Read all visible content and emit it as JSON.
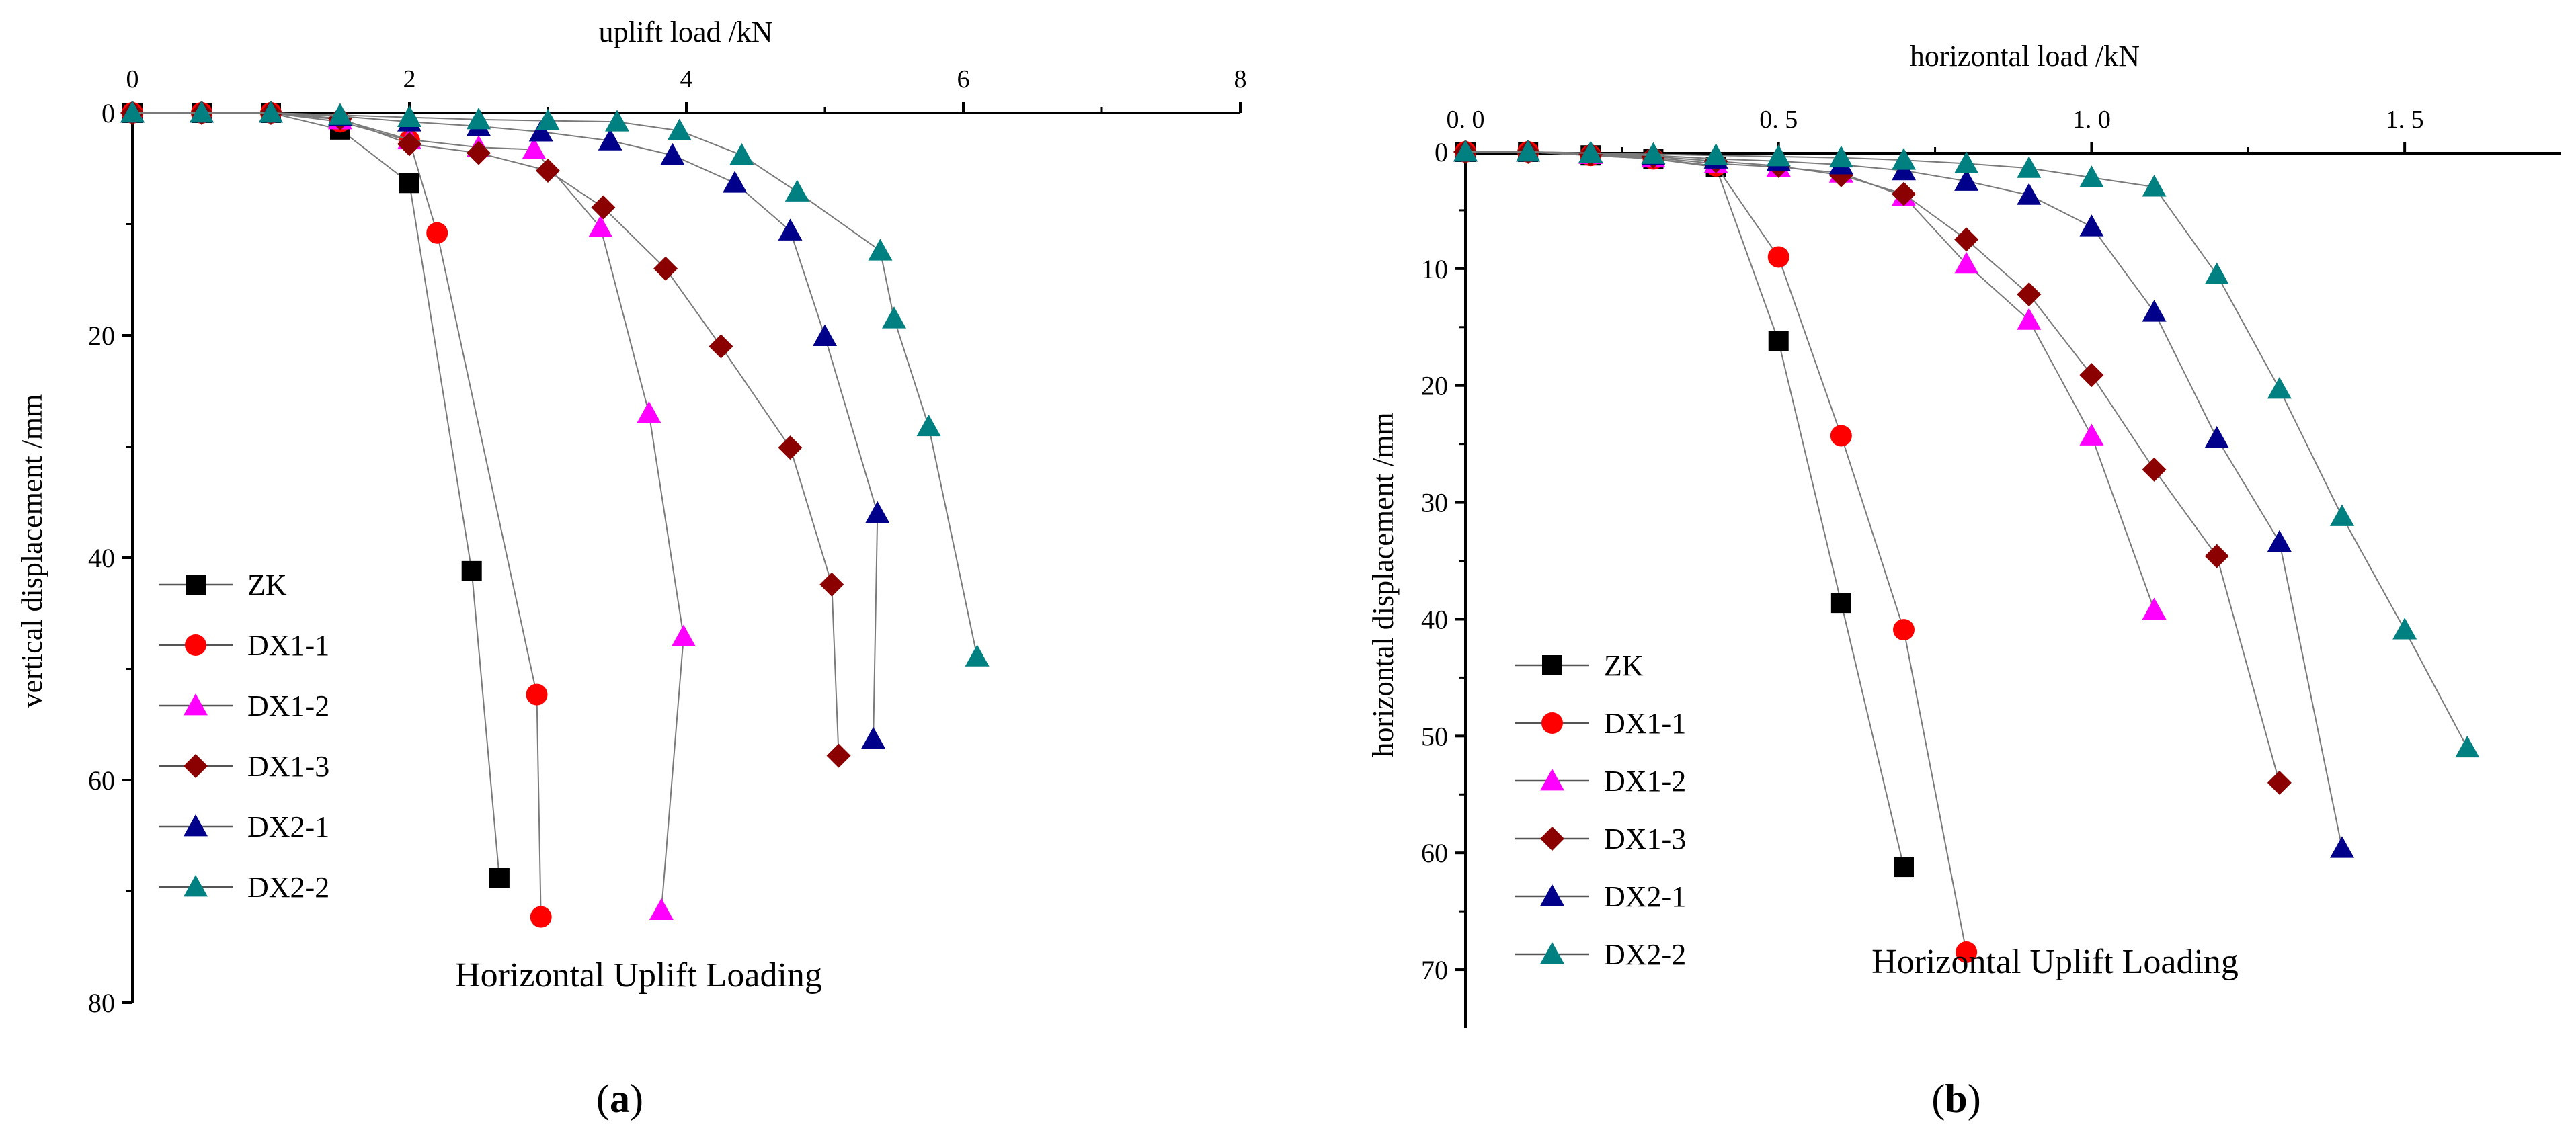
{
  "chart_data": [
    {
      "type": "line",
      "panel_label": "(a)",
      "panel_label_bold": "a",
      "xlabel": "uplift load /kN",
      "ylabel": "vertical displacement /mm",
      "annotation": "Horizontal Uplift Loading",
      "xlim": [
        0,
        8
      ],
      "ylim": [
        0,
        80
      ],
      "x_ticks": [
        0,
        2,
        4,
        6,
        8
      ],
      "x_tick_labels": [
        "0",
        "2",
        "4",
        "6",
        "8"
      ],
      "y_ticks": [
        0,
        20,
        40,
        60,
        80
      ],
      "y_tick_labels": [
        "0",
        "20",
        "40",
        "60",
        "80"
      ],
      "x_axis_position": "top",
      "y_inverted": true,
      "legend_position": "bottom-left",
      "series": [
        {
          "name": "ZK",
          "color": "#000000",
          "marker": "square",
          "x": [
            0,
            0.5,
            1,
            1.5,
            2,
            2.45,
            2.65
          ],
          "y": [
            0,
            0,
            0,
            1.5,
            6.3,
            41.2,
            68.8
          ]
        },
        {
          "name": "DX1-1",
          "color": "#ff0000",
          "marker": "circle",
          "x": [
            0,
            0.5,
            1,
            1.5,
            2,
            2.2,
            2.92,
            2.95
          ],
          "y": [
            0,
            0,
            0,
            0.8,
            2.5,
            10.8,
            52.3,
            72.3
          ]
        },
        {
          "name": "DX1-2",
          "color": "#ff00ff",
          "marker": "triangle-up",
          "x": [
            0,
            0.5,
            1,
            1.5,
            2,
            2.5,
            2.9,
            3.38,
            3.73,
            3.98,
            3.82
          ],
          "y": [
            0,
            0,
            0,
            0.6,
            2.4,
            3.1,
            3.3,
            10.3,
            27.0,
            47.1,
            71.7
          ]
        },
        {
          "name": "DX1-3",
          "color": "#8b0000",
          "marker": "diamond",
          "x": [
            0,
            0.5,
            1,
            1.5,
            2,
            2.5,
            3,
            3.4,
            3.85,
            4.25,
            4.75,
            5.05,
            5.1
          ],
          "y": [
            0,
            0,
            0,
            0.5,
            2.8,
            3.6,
            5.2,
            8.5,
            14.0,
            21.0,
            30.1,
            42.4,
            57.8
          ]
        },
        {
          "name": "DX2-1",
          "color": "#00008b",
          "marker": "triangle-up",
          "x": [
            0,
            0.5,
            1,
            1.5,
            2,
            2.5,
            2.95,
            3.45,
            3.9,
            4.35,
            4.75,
            5.0,
            5.38,
            5.35
          ],
          "y": [
            0,
            0,
            0,
            0.3,
            0.8,
            1.2,
            1.7,
            2.5,
            3.8,
            6.3,
            10.6,
            20.1,
            36.0,
            56.3
          ]
        },
        {
          "name": "DX2-2",
          "color": "#008080",
          "marker": "triangle-up",
          "x": [
            0,
            0.5,
            1,
            1.5,
            2,
            2.5,
            3,
            3.5,
            3.95,
            4.4,
            4.8,
            5.4,
            5.5,
            5.75,
            6.1
          ],
          "y": [
            0,
            0,
            0,
            0.2,
            0.4,
            0.6,
            0.7,
            0.8,
            1.6,
            3.8,
            7.1,
            12.4,
            18.5,
            28.2,
            48.9
          ]
        }
      ]
    },
    {
      "type": "line",
      "panel_label": "(b)",
      "panel_label_bold": "b",
      "xlabel": "horizontal load /kN",
      "ylabel": "horizontal displacement /mm",
      "annotation": "Horizontal Uplift Loading",
      "xlim": [
        0,
        1.75
      ],
      "ylim": [
        0,
        75
      ],
      "x_ticks": [
        0,
        0.5,
        1.0,
        1.5
      ],
      "x_tick_labels": [
        "0. 0",
        "0. 5",
        "1. 0",
        "1. 5"
      ],
      "y_ticks": [
        0,
        10,
        20,
        30,
        40,
        50,
        60,
        70
      ],
      "y_tick_labels": [
        "0",
        "10",
        "20",
        "30",
        "40",
        "50",
        "60",
        "70"
      ],
      "x_axis_position": "top",
      "y_inverted": true,
      "legend_position": "bottom-left",
      "series": [
        {
          "name": "ZK",
          "color": "#000000",
          "marker": "square",
          "x": [
            0,
            0.1,
            0.2,
            0.3,
            0.4,
            0.5,
            0.6,
            0.7
          ],
          "y": [
            0,
            0,
            0.3,
            0.6,
            1.3,
            16.2,
            38.6,
            61.2
          ]
        },
        {
          "name": "DX1-1",
          "color": "#ff0000",
          "marker": "circle",
          "x": [
            0,
            0.1,
            0.2,
            0.3,
            0.4,
            0.5,
            0.6,
            0.7,
            0.8
          ],
          "y": [
            0,
            0,
            0.3,
            0.6,
            1.2,
            9.0,
            24.3,
            40.9,
            68.5
          ]
        },
        {
          "name": "DX1-2",
          "color": "#ff00ff",
          "marker": "triangle-up",
          "x": [
            0,
            0.1,
            0.2,
            0.3,
            0.4,
            0.5,
            0.6,
            0.7,
            0.8,
            0.9,
            1.0,
            1.1
          ],
          "y": [
            0,
            0,
            0.2,
            0.5,
            1.0,
            1.3,
            1.8,
            3.8,
            9.6,
            14.4,
            24.3,
            39.2
          ]
        },
        {
          "name": "DX1-3",
          "color": "#8b0000",
          "marker": "diamond",
          "x": [
            0,
            0.1,
            0.2,
            0.3,
            0.4,
            0.5,
            0.6,
            0.7,
            0.8,
            0.9,
            1.0,
            1.1,
            1.2,
            1.3
          ],
          "y": [
            0,
            0,
            0.2,
            0.4,
            0.8,
            1.2,
            2.0,
            3.6,
            7.5,
            12.2,
            19.1,
            27.2,
            34.6,
            54.0
          ]
        },
        {
          "name": "DX2-1",
          "color": "#00008b",
          "marker": "triangle-up",
          "x": [
            0,
            0.1,
            0.2,
            0.3,
            0.4,
            0.5,
            0.6,
            0.7,
            0.8,
            0.9,
            1.0,
            1.1,
            1.2,
            1.3,
            1.4
          ],
          "y": [
            0,
            0,
            0.1,
            0.3,
            0.6,
            0.8,
            1.1,
            1.6,
            2.5,
            3.7,
            6.4,
            13.7,
            24.5,
            33.4,
            59.6
          ]
        },
        {
          "name": "DX2-2",
          "color": "#008080",
          "marker": "triangle-up",
          "x": [
            0,
            0.1,
            0.2,
            0.3,
            0.4,
            0.5,
            0.6,
            0.7,
            0.8,
            0.9,
            1.0,
            1.1,
            1.2,
            1.3,
            1.4,
            1.5,
            1.6
          ],
          "y": [
            0,
            0,
            0.1,
            0.2,
            0.3,
            0.4,
            0.5,
            0.7,
            1.0,
            1.4,
            2.2,
            3.0,
            10.5,
            20.3,
            31.2,
            40.9,
            51.0
          ]
        }
      ]
    }
  ]
}
